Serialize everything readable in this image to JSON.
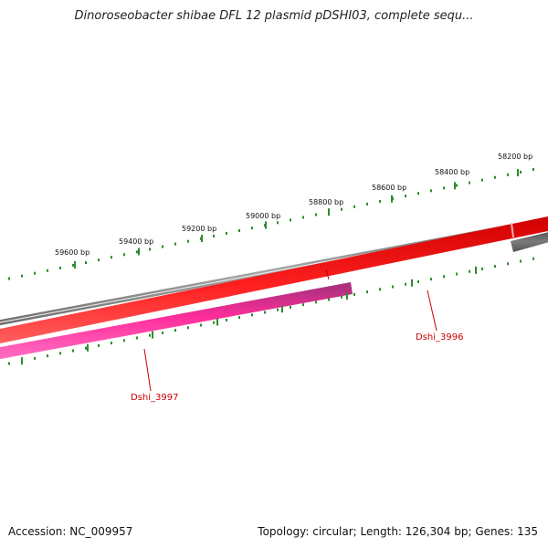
{
  "title": "Dinoroseobacter shibae DFL 12 plasmid pDSHI03, complete sequ...",
  "ticks": [
    {
      "label": "59600 bp"
    },
    {
      "label": "59400 bp"
    },
    {
      "label": "59200 bp"
    },
    {
      "label": "59000 bp"
    },
    {
      "label": "58800 bp"
    },
    {
      "label": "58600 bp"
    },
    {
      "label": "58400 bp"
    },
    {
      "label": "58200 bp"
    }
  ],
  "genes": [
    {
      "name": "Dshi_3997",
      "color": "#ff2d9b",
      "strand": "-"
    },
    {
      "name": "Dshi_3996",
      "color": "#ff1a1a",
      "strand": "+"
    }
  ],
  "colors": {
    "backbone": "#8c8c8c",
    "tick": "#2e8b2e",
    "gene_label": "#cc0000",
    "feature_dark": "#6e6e6e"
  },
  "footer": {
    "accession": "Accession: NC_009957",
    "summary": "Topology: circular; Length: 126,304 bp; Genes: 135"
  }
}
